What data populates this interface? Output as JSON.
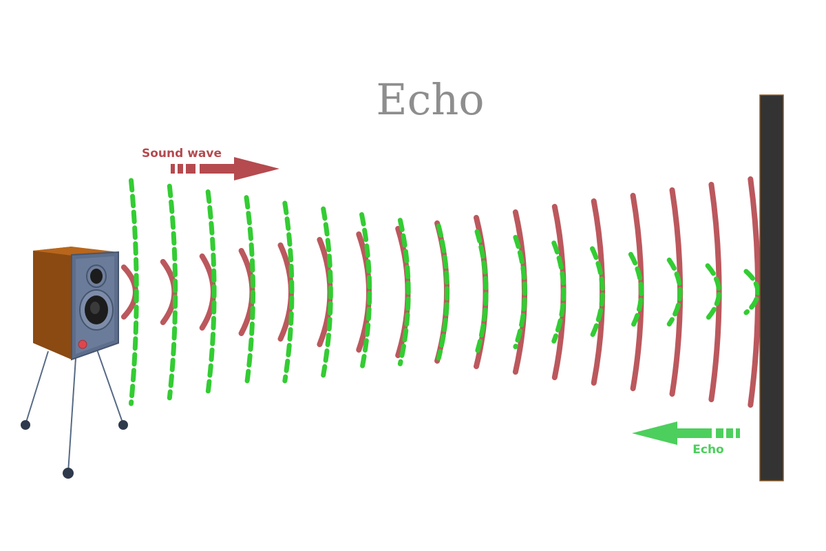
{
  "title": "Echo",
  "sound_label": "Sound wave",
  "echo_label": "Echo",
  "colors": {
    "sound_wave": "#b54a4f",
    "echo_wave": "#33cc33",
    "echo_arrow": "#4ccf5c",
    "wall": "#333333",
    "speaker_body": "#8a4a12",
    "speaker_face": "#5d6e8c",
    "title": "#8e8e8e"
  },
  "icons": {
    "source": "speaker-icon",
    "reflector": "wall"
  }
}
